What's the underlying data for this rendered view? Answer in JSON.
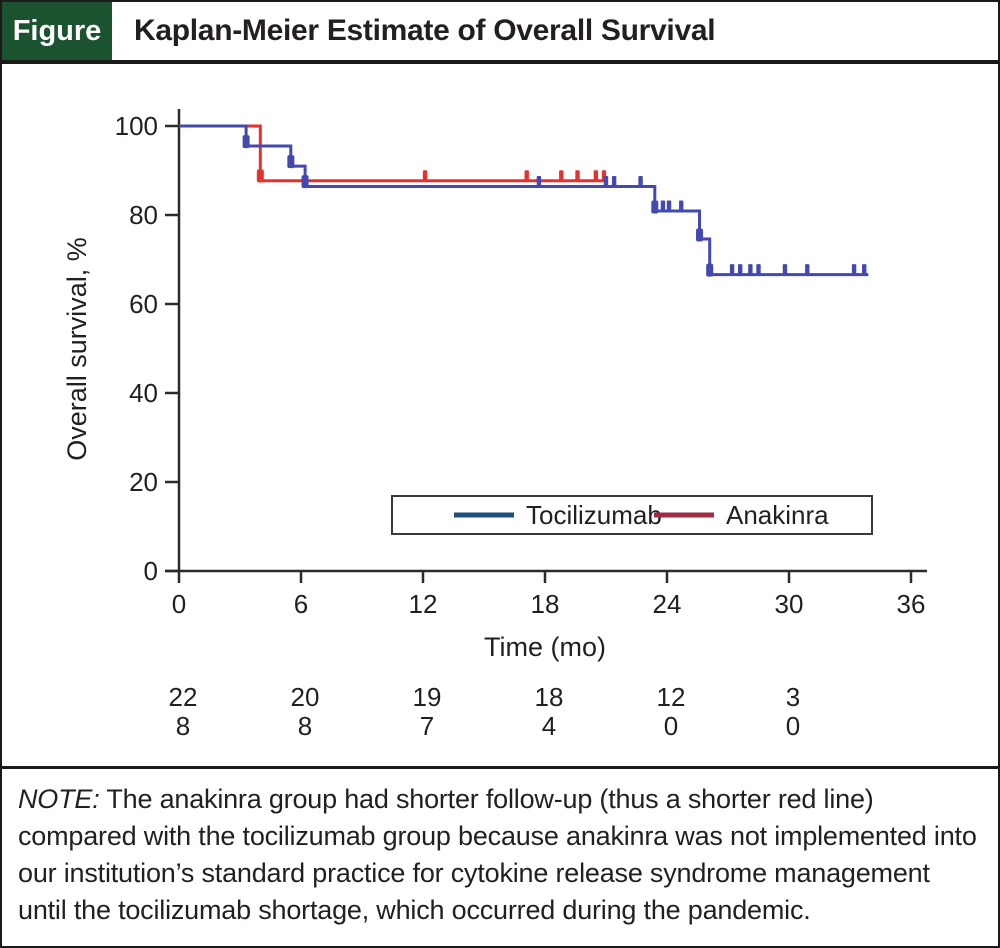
{
  "header": {
    "tag": "Figure",
    "title": "Kaplan-Meier Estimate of Overall Survival"
  },
  "colors": {
    "header_green": "#1b5230",
    "text": "#231f20",
    "axis": "#2b2b2b",
    "tocilizumab_line": "#4349af",
    "anakinra_line": "#e8312d",
    "tocilizumab_legend": "#1d4e7c",
    "anakinra_legend": "#a02b45"
  },
  "note": {
    "prefix": "NOTE:",
    "text": "The anakinra group had shorter follow-up (thus a shorter red line) compared with the tocilizumab group because anakinra was not implemented into our institution’s standard practice for cytokine release syndrome management until the tocilizumab shortage, which occurred during the pandemic."
  },
  "chart_data": {
    "type": "line",
    "subtype": "kaplan-meier-step",
    "title": "Kaplan-Meier Estimate of Overall Survival",
    "xlabel": "Time (mo)",
    "ylabel": "Overall survival, %",
    "xlim": [
      0,
      36
    ],
    "ylim": [
      0,
      100
    ],
    "xticks": [
      0,
      6,
      12,
      18,
      24,
      30,
      36
    ],
    "yticks": [
      0,
      20,
      40,
      60,
      80,
      100
    ],
    "grid": false,
    "legend_position": "inside-bottom",
    "series": [
      {
        "name": "Tocilizumab",
        "color": "#4349af",
        "legend_color": "#1d4e7c",
        "points": [
          [
            0,
            100
          ],
          [
            3.3,
            100
          ],
          [
            3.3,
            95.5
          ],
          [
            5.5,
            95.5
          ],
          [
            5.5,
            91
          ],
          [
            6.2,
            91
          ],
          [
            6.2,
            86.4
          ],
          [
            23.4,
            86.4
          ],
          [
            23.4,
            80.9
          ],
          [
            25.6,
            80.9
          ],
          [
            25.6,
            74.6
          ],
          [
            26.1,
            74.6
          ],
          [
            26.1,
            66.6
          ],
          [
            33.9,
            66.6
          ]
        ],
        "censor_ticks": [
          17.7,
          21.0,
          21.4,
          22.7,
          23.8,
          24.1,
          24.7,
          27.2,
          27.6,
          28.1,
          28.5,
          29.8,
          30.9,
          33.2,
          33.7
        ],
        "censor_blobs": [
          [
            3.3,
            96.5
          ],
          [
            5.5,
            92.0
          ],
          [
            6.2,
            87.5
          ],
          [
            23.4,
            81.8
          ],
          [
            25.6,
            75.5
          ],
          [
            26.1,
            67.6
          ]
        ]
      },
      {
        "name": "Anakinra",
        "color": "#e8312d",
        "legend_color": "#a02b45",
        "points": [
          [
            0,
            100
          ],
          [
            4.0,
            100
          ],
          [
            4.0,
            87.7
          ],
          [
            20.9,
            87.7
          ]
        ],
        "censor_ticks": [
          12.1,
          17.1,
          18.8,
          19.6,
          20.5,
          20.9
        ],
        "censor_blobs": [
          [
            4.0,
            88.8
          ]
        ]
      }
    ],
    "at_risk": {
      "times": [
        0,
        6,
        12,
        18,
        24,
        30
      ],
      "rows": [
        {
          "name": "Tocilizumab",
          "values": [
            22,
            20,
            19,
            18,
            12,
            3
          ]
        },
        {
          "name": "Anakinra",
          "values": [
            8,
            8,
            7,
            4,
            0,
            0
          ]
        }
      ]
    }
  }
}
